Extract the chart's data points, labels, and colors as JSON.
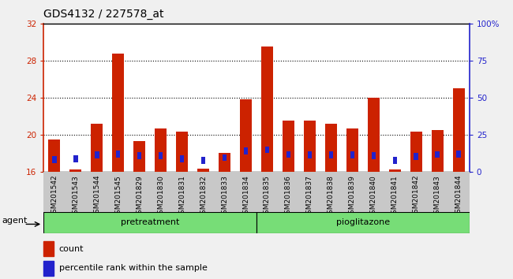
{
  "title": "GDS4132 / 227578_at",
  "samples": [
    "GSM201542",
    "GSM201543",
    "GSM201544",
    "GSM201545",
    "GSM201829",
    "GSM201830",
    "GSM201831",
    "GSM201832",
    "GSM201833",
    "GSM201834",
    "GSM201835",
    "GSM201836",
    "GSM201837",
    "GSM201838",
    "GSM201839",
    "GSM201840",
    "GSM201841",
    "GSM201842",
    "GSM201843",
    "GSM201844"
  ],
  "count_values": [
    19.5,
    16.2,
    21.2,
    28.8,
    19.3,
    20.7,
    20.3,
    16.3,
    18.0,
    23.8,
    29.5,
    21.5,
    21.5,
    21.2,
    20.7,
    24.0,
    16.2,
    20.3,
    20.5,
    25.0
  ],
  "percentile_values": [
    17.3,
    17.4,
    17.8,
    17.9,
    17.7,
    17.7,
    17.4,
    17.2,
    17.5,
    18.2,
    18.35,
    17.85,
    17.8,
    17.8,
    17.8,
    17.75,
    17.2,
    17.65,
    17.85,
    17.9
  ],
  "group_divider": 10,
  "ylim_left": [
    16,
    32
  ],
  "ylim_right": [
    0,
    100
  ],
  "yticks_left": [
    16,
    20,
    24,
    28,
    32
  ],
  "yticks_right": [
    0,
    25,
    50,
    75,
    100
  ],
  "ytick_labels_right": [
    "0",
    "25",
    "50",
    "75",
    "100%"
  ],
  "bar_color_count": "#cc2200",
  "bar_color_percentile": "#2222cc",
  "bar_width": 0.55,
  "plot_bg_color": "#ffffff",
  "xtick_bg_color": "#c8c8c8",
  "left_axis_color": "#cc2200",
  "right_axis_color": "#2222cc",
  "group_color": "#77dd77",
  "group_label_pretreatment": "pretreatment",
  "group_label_pioglitazone": "pioglitazone",
  "agent_label": "agent",
  "legend_count_label": "count",
  "legend_percentile_label": "percentile rank within the sample",
  "title_fontsize": 10,
  "tick_fontsize": 7.5
}
